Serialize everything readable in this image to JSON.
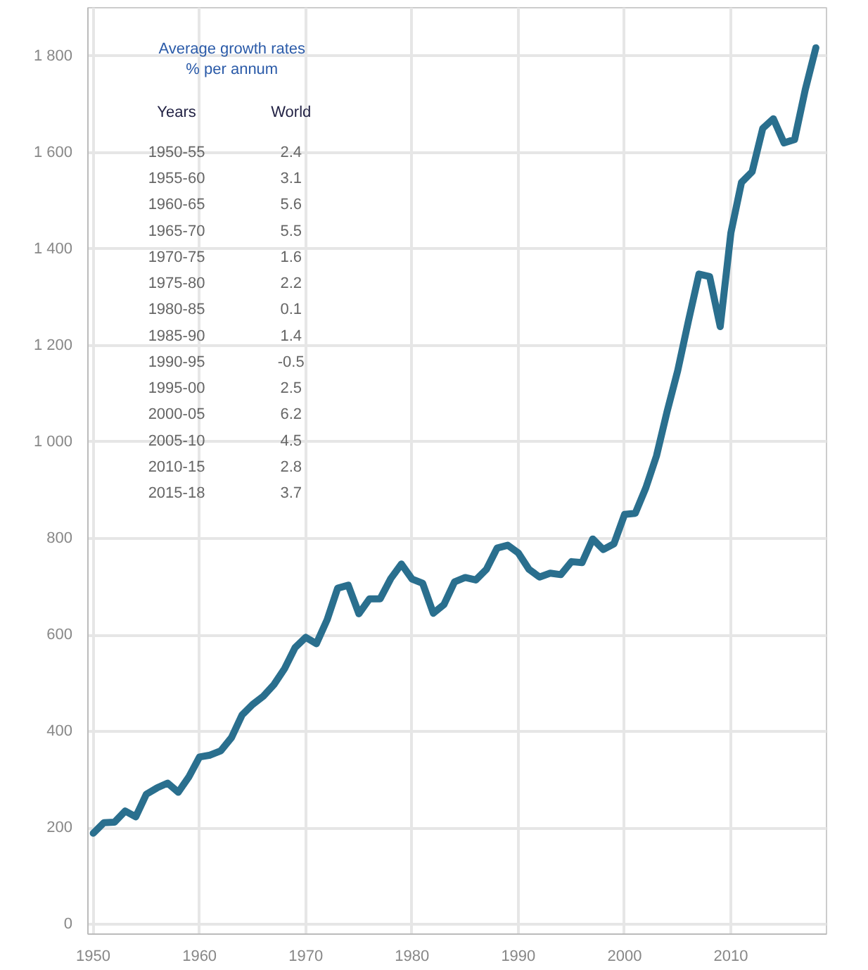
{
  "chart_data": {
    "type": "line",
    "x": [
      1950,
      1951,
      1952,
      1953,
      1954,
      1955,
      1956,
      1957,
      1958,
      1959,
      1960,
      1961,
      1962,
      1963,
      1964,
      1965,
      1966,
      1967,
      1968,
      1969,
      1970,
      1971,
      1972,
      1973,
      1974,
      1975,
      1976,
      1977,
      1978,
      1979,
      1980,
      1981,
      1982,
      1983,
      1984,
      1985,
      1986,
      1987,
      1988,
      1989,
      1990,
      1991,
      1992,
      1993,
      1994,
      1995,
      1996,
      1997,
      1998,
      1999,
      2000,
      2001,
      2002,
      2003,
      2004,
      2005,
      2006,
      2007,
      2008,
      2009,
      2010,
      2011,
      2012,
      2013,
      2014,
      2015,
      2016,
      2017,
      2018
    ],
    "series": [
      {
        "color": "#2a6f8e",
        "values": [
          189,
          211,
          212,
          235,
          223,
          270,
          283,
          293,
          274,
          306,
          347,
          351,
          360,
          387,
          434,
          456,
          473,
          497,
          530,
          574,
          595,
          582,
          631,
          697,
          703,
          644,
          675,
          675,
          717,
          747,
          716,
          707,
          645,
          663,
          710,
          719,
          714,
          736,
          780,
          786,
          770,
          736,
          720,
          728,
          725,
          752,
          750,
          799,
          777,
          789,
          850,
          852,
          905,
          971,
          1063,
          1148,
          1250,
          1348,
          1343,
          1239,
          1433,
          1538,
          1560,
          1650,
          1670,
          1620,
          1627,
          1730,
          1817
        ]
      }
    ],
    "xlim": [
      1949.5,
      2019
    ],
    "ylim": [
      -20,
      1900
    ],
    "xticks": [
      1950,
      1960,
      1970,
      1980,
      1990,
      2000,
      2010
    ],
    "yticks": [
      0,
      200,
      400,
      600,
      800,
      {
        "value": 1000,
        "label": "1 000"
      },
      {
        "value": 1200,
        "label": "1 200"
      },
      {
        "value": 1400,
        "label": "1 400"
      },
      {
        "value": 1600,
        "label": "1 600"
      },
      {
        "value": 1800,
        "label": "1 800"
      }
    ],
    "grid": true,
    "annotations": [
      "Average growth rates\n% per annum",
      "Years",
      "World",
      "1950-55",
      "2.4",
      "1955-60",
      "3.1",
      "1960-65",
      "5.6",
      "1965-70",
      "5.5",
      "1970-75",
      "1.6",
      "1975-80",
      "2.2",
      "1980-85",
      "0.1",
      "1985-90",
      "1.4",
      "1990-95",
      "-0.5",
      "1995-00",
      "2.5",
      "2000-05",
      "6.2",
      "2005-10",
      "4.5",
      "2010-15",
      "2.8",
      "2015-18",
      "3.7"
    ]
  }
}
